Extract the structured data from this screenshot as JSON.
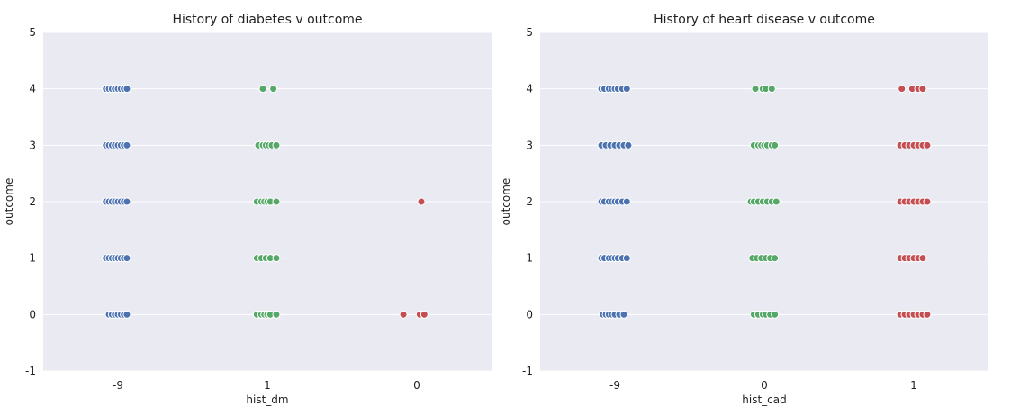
{
  "chart_data": [
    {
      "type": "scatter",
      "title": "History of diabetes v outcome",
      "xlabel": "hist_dm",
      "ylabel": "outcome",
      "categories": [
        "-9",
        "1",
        "0"
      ],
      "category_colors": [
        "#4c72b0",
        "#55a868",
        "#c44e52"
      ],
      "yticks": [
        -1,
        0,
        1,
        2,
        3,
        4,
        5
      ],
      "ylim": [
        -1,
        5
      ],
      "grid": true,
      "series": [
        {
          "category": "-9",
          "points": [
            {
              "outcome": 4,
              "x": [
                -0.08,
                -0.06,
                -0.04,
                -0.02,
                0.0,
                0.02,
                0.04,
                0.06
              ]
            },
            {
              "outcome": 3,
              "x": [
                -0.08,
                -0.06,
                -0.04,
                -0.02,
                0.0,
                0.02,
                0.04,
                0.06
              ]
            },
            {
              "outcome": 2,
              "x": [
                -0.08,
                -0.06,
                -0.04,
                -0.02,
                0.0,
                0.02,
                0.04,
                0.06
              ]
            },
            {
              "outcome": 1,
              "x": [
                -0.08,
                -0.06,
                -0.04,
                -0.02,
                0.0,
                0.02,
                0.04,
                0.06
              ]
            },
            {
              "outcome": 0,
              "x": [
                -0.06,
                -0.04,
                -0.02,
                0.0,
                0.02,
                0.04,
                0.06
              ]
            }
          ]
        },
        {
          "category": "1",
          "points": [
            {
              "outcome": 4,
              "x": [
                -0.03,
                0.04
              ]
            },
            {
              "outcome": 3,
              "x": [
                -0.06,
                -0.03,
                -0.01,
                0.01,
                0.03,
                0.06
              ]
            },
            {
              "outcome": 2,
              "x": [
                -0.07,
                -0.04,
                -0.02,
                0.0,
                0.02,
                0.06
              ]
            },
            {
              "outcome": 1,
              "x": [
                -0.07,
                -0.04,
                -0.01,
                0.02,
                0.06
              ]
            },
            {
              "outcome": 0,
              "x": [
                -0.07,
                -0.04,
                -0.02,
                0.0,
                0.02,
                0.06
              ]
            }
          ]
        },
        {
          "category": "0",
          "points": [
            {
              "outcome": 2,
              "x": [
                0.03
              ]
            },
            {
              "outcome": 0,
              "x": [
                -0.09,
                0.02,
                0.05
              ]
            }
          ]
        }
      ]
    },
    {
      "type": "scatter",
      "title": "History of heart disease v outcome",
      "xlabel": "hist_cad",
      "ylabel": "outcome",
      "categories": [
        "-9",
        "0",
        "1"
      ],
      "category_colors": [
        "#4c72b0",
        "#55a868",
        "#c44e52"
      ],
      "yticks": [
        -1,
        0,
        1,
        2,
        3,
        4,
        5
      ],
      "ylim": [
        -1,
        5
      ],
      "grid": true,
      "series": [
        {
          "category": "-9",
          "points": [
            {
              "outcome": 4,
              "x": [
                -0.09,
                -0.07,
                -0.04,
                -0.02,
                0.0,
                0.02,
                0.05,
                0.08
              ]
            },
            {
              "outcome": 3,
              "x": [
                -0.09,
                -0.06,
                -0.03,
                0.0,
                0.03,
                0.06,
                0.09
              ]
            },
            {
              "outcome": 2,
              "x": [
                -0.09,
                -0.07,
                -0.04,
                -0.02,
                0.0,
                0.02,
                0.05,
                0.08
              ]
            },
            {
              "outcome": 1,
              "x": [
                -0.09,
                -0.07,
                -0.04,
                -0.02,
                0.0,
                0.02,
                0.05,
                0.08
              ]
            },
            {
              "outcome": 0,
              "x": [
                -0.08,
                -0.06,
                -0.04,
                -0.02,
                0.0,
                0.03,
                0.06
              ]
            }
          ]
        },
        {
          "category": "0",
          "points": [
            {
              "outcome": 4,
              "x": [
                -0.06,
                -0.01,
                0.01,
                0.05
              ]
            },
            {
              "outcome": 3,
              "x": [
                -0.07,
                -0.04,
                -0.02,
                0.0,
                0.02,
                0.05,
                0.07
              ]
            },
            {
              "outcome": 2,
              "x": [
                -0.09,
                -0.07,
                -0.04,
                -0.01,
                0.02,
                0.05,
                0.08
              ]
            },
            {
              "outcome": 1,
              "x": [
                -0.08,
                -0.05,
                -0.02,
                0.01,
                0.04,
                0.07
              ]
            },
            {
              "outcome": 0,
              "x": [
                -0.07,
                -0.04,
                -0.01,
                0.01,
                0.04,
                0.07
              ]
            }
          ]
        },
        {
          "category": "1",
          "points": [
            {
              "outcome": 4,
              "x": [
                -0.08,
                -0.01,
                0.03,
                0.06
              ]
            },
            {
              "outcome": 3,
              "x": [
                -0.09,
                -0.06,
                -0.03,
                0.0,
                0.03,
                0.06,
                0.09
              ]
            },
            {
              "outcome": 2,
              "x": [
                -0.09,
                -0.06,
                -0.03,
                0.0,
                0.03,
                0.06,
                0.09
              ]
            },
            {
              "outcome": 1,
              "x": [
                -0.09,
                -0.06,
                -0.03,
                0.0,
                0.03,
                0.06
              ]
            },
            {
              "outcome": 0,
              "x": [
                -0.09,
                -0.06,
                -0.03,
                0.0,
                0.03,
                0.06,
                0.09
              ]
            }
          ]
        }
      ]
    }
  ]
}
